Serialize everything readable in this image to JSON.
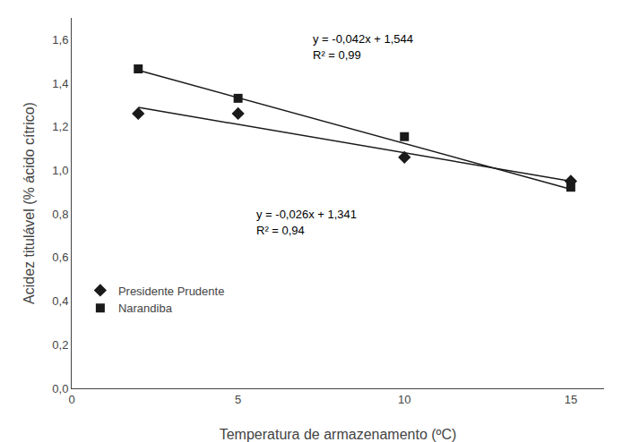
{
  "chart_data": {
    "type": "scatter",
    "xlabel": "Temperatura de armazenamento (ºC)",
    "ylabel": "Acidez titulável (% ácido cítrico)",
    "series": [
      {
        "type": "line",
        "color": "#1a1a1a",
        "x": [
          2,
          15
        ],
        "values": [
          1.46,
          0.914
        ]
      },
      {
        "type": "line",
        "color": "#1a1a1a",
        "x": [
          2,
          15
        ],
        "values": [
          1.289,
          0.951
        ]
      },
      {
        "name": "Presidente Prudente",
        "type": "scatter",
        "marker": "diamond",
        "color": "#1a1a1a",
        "x": [
          2,
          5,
          10,
          15
        ],
        "values": [
          1.261,
          1.261,
          1.06,
          0.951
        ]
      },
      {
        "name": "Narandiba",
        "type": "scatter",
        "marker": "square",
        "color": "#1a1a1a",
        "x": [
          2,
          5,
          10,
          15
        ],
        "values": [
          1.466,
          1.331,
          1.155,
          0.923
        ]
      }
    ],
    "annotations": [
      {
        "text": "y = -0,042x + 1,544",
        "x": 7.2,
        "y": 1.565
      },
      {
        "text": "R² = 0,99",
        "x": 7.2,
        "y": 1.49
      },
      {
        "text": "y = -0,026x + 1,341",
        "x": 5.5,
        "y": 0.76
      },
      {
        "text": "R² = 0,94",
        "x": 5.5,
        "y": 0.685
      }
    ],
    "xlim": [
      0,
      16
    ],
    "ylim": [
      0.0,
      1.7
    ],
    "xticks": [
      0,
      5,
      10,
      15
    ],
    "yticks": [
      {
        "value": 0.0,
        "label": "0,0"
      },
      {
        "value": 0.2,
        "label": "0,2"
      },
      {
        "value": 0.4,
        "label": "0,4"
      },
      {
        "value": 0.6,
        "label": "0,6"
      },
      {
        "value": 0.8,
        "label": "0,8"
      },
      {
        "value": 1.0,
        "label": "1,0"
      },
      {
        "value": 1.2,
        "label": "1,2"
      },
      {
        "value": 1.4,
        "label": "1,4"
      },
      {
        "value": 1.6,
        "label": "1,6"
      }
    ],
    "grid": false,
    "legend": "lower left"
  }
}
